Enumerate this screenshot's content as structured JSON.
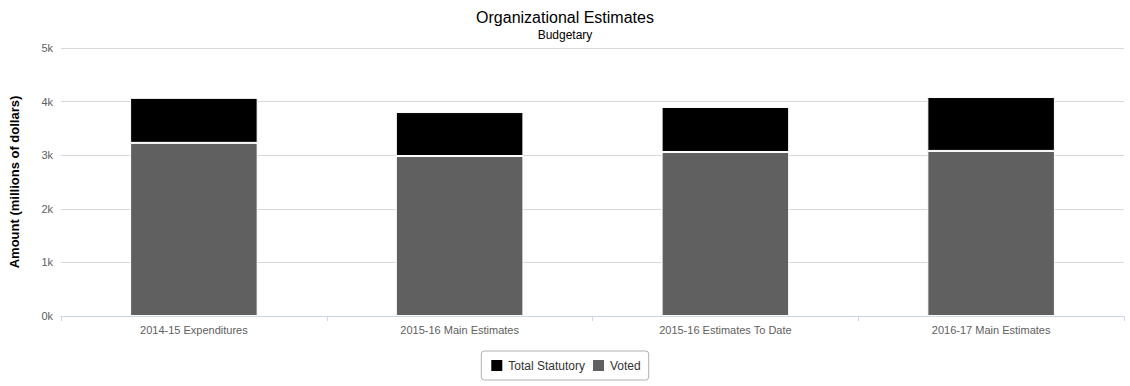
{
  "chart_data": {
    "type": "bar",
    "title": "Organizational Estimates",
    "subtitle": "Budgetary",
    "y_label": "Amount (millions of dollars)",
    "categories": [
      "2014-15 Expenditures",
      "2015-16 Main Estimates",
      "2015-16 Estimates To Date",
      "2016-17 Main Estimates"
    ],
    "series": [
      {
        "name": "Total Statutory",
        "color": "#000000",
        "values": [
          840,
          820,
          840,
          1005
        ]
      },
      {
        "name": "Voted",
        "color": "#606060",
        "values": [
          3230,
          2985,
          3060,
          3080
        ]
      }
    ],
    "stacked": true,
    "ylim": [
      0,
      5000
    ],
    "yticks": [
      {
        "value": 0,
        "label": "0k"
      },
      {
        "value": 1000,
        "label": "1k"
      },
      {
        "value": 2000,
        "label": "2k"
      },
      {
        "value": 3000,
        "label": "3k"
      },
      {
        "value": 4000,
        "label": "4k"
      },
      {
        "value": 5000,
        "label": "5k"
      }
    ],
    "grid": true,
    "legend": "bottom"
  }
}
